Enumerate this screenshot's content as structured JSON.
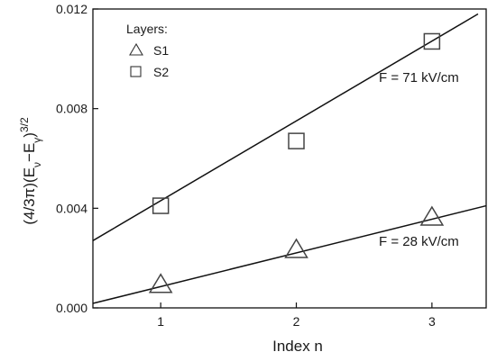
{
  "chart_data": {
    "type": "scatter",
    "xlabel": "Index n",
    "ylabel_parts": {
      "prefix": "(4/3π)(E",
      "sub1": "ν",
      "mid": "−E",
      "sub2": "γ",
      "suffix": ")",
      "sup": "3/2"
    },
    "xlim": [
      0.5,
      3.4
    ],
    "ylim": [
      0.0,
      0.012
    ],
    "x_ticks": [
      1,
      2,
      3
    ],
    "x_tick_labels": [
      "1",
      "2",
      "3"
    ],
    "y_ticks": [
      0.0,
      0.004,
      0.008,
      0.012
    ],
    "y_tick_labels": [
      "0.000",
      "0.004",
      "0.008",
      "0.012"
    ],
    "legend": {
      "title": "Layers:",
      "placement": "top-left",
      "entries": [
        {
          "marker": "triangle",
          "label": "S1"
        },
        {
          "marker": "square",
          "label": "S2"
        }
      ]
    },
    "series": [
      {
        "name": "S1",
        "marker": "triangle",
        "x": [
          1,
          2,
          3
        ],
        "y": [
          0.0009,
          0.0023,
          0.0036
        ],
        "fit": {
          "x": [
            0.5,
            3.4
          ],
          "y": [
            0.00018,
            0.0041
          ]
        },
        "annotation": "F = 28 kV/cm"
      },
      {
        "name": "S2",
        "marker": "square",
        "x": [
          1,
          2,
          3
        ],
        "y": [
          0.0041,
          0.0067,
          0.0107
        ],
        "fit": {
          "x": [
            0.5,
            3.34
          ],
          "y": [
            0.0027,
            0.0118
          ]
        },
        "annotation": "F = 71 kV/cm"
      }
    ]
  }
}
